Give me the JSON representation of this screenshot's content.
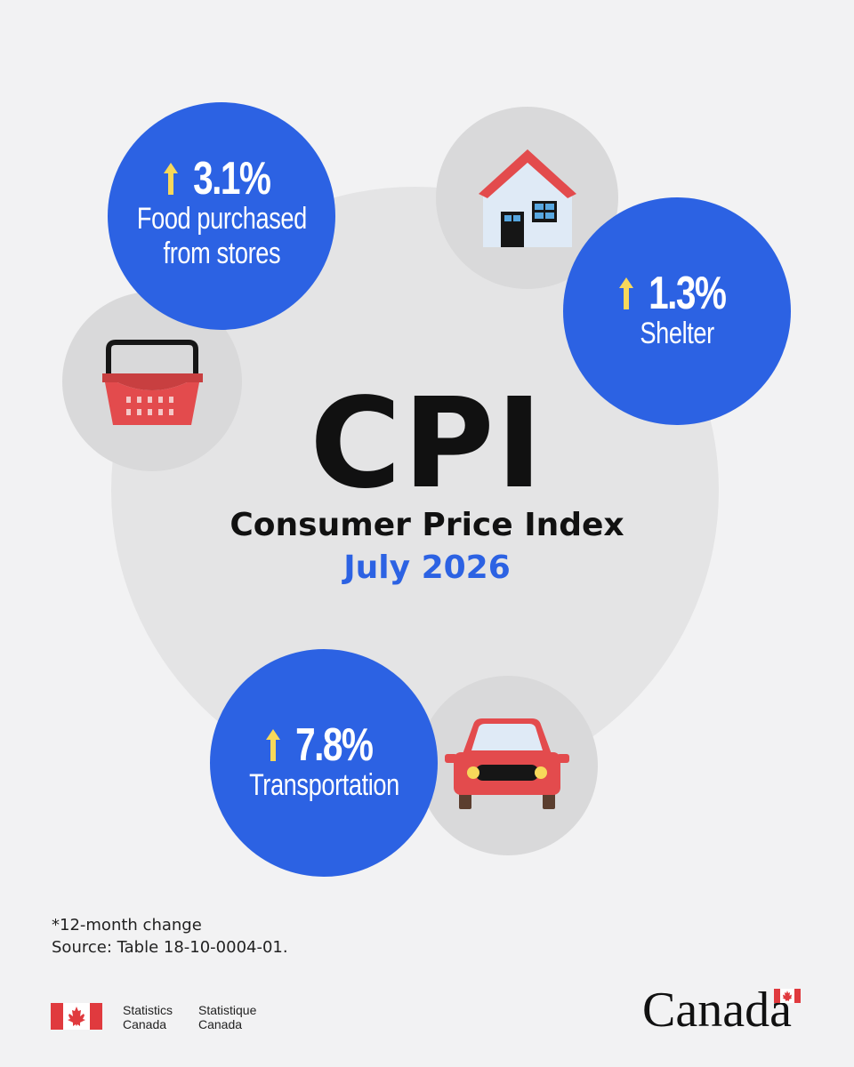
{
  "header": {
    "title": "CPI",
    "subtitle": "Consumer Price Index",
    "date": "July 2026"
  },
  "stats": [
    {
      "value": "3.1%",
      "label": "Food purchased\nfrom stores",
      "direction": "up",
      "icon": "shopping-basket-icon"
    },
    {
      "value": "1.3%",
      "label": "Shelter",
      "direction": "up",
      "icon": "house-icon"
    },
    {
      "value": "7.8%",
      "label": "Transportation",
      "direction": "up",
      "icon": "car-icon"
    }
  ],
  "footer": {
    "note": "*12-month change",
    "source": "Source: Table 18-10-0004-01.",
    "agency_en_1": "Statistics",
    "agency_en_2": "Canada",
    "agency_fr_1": "Statistique",
    "agency_fr_2": "Canada",
    "wordmark": "Canada"
  },
  "colors": {
    "accent": "#2c62e3",
    "arrow": "#f7d85a",
    "background": "#f2f2f3",
    "flag_red": "#e03a3e"
  }
}
